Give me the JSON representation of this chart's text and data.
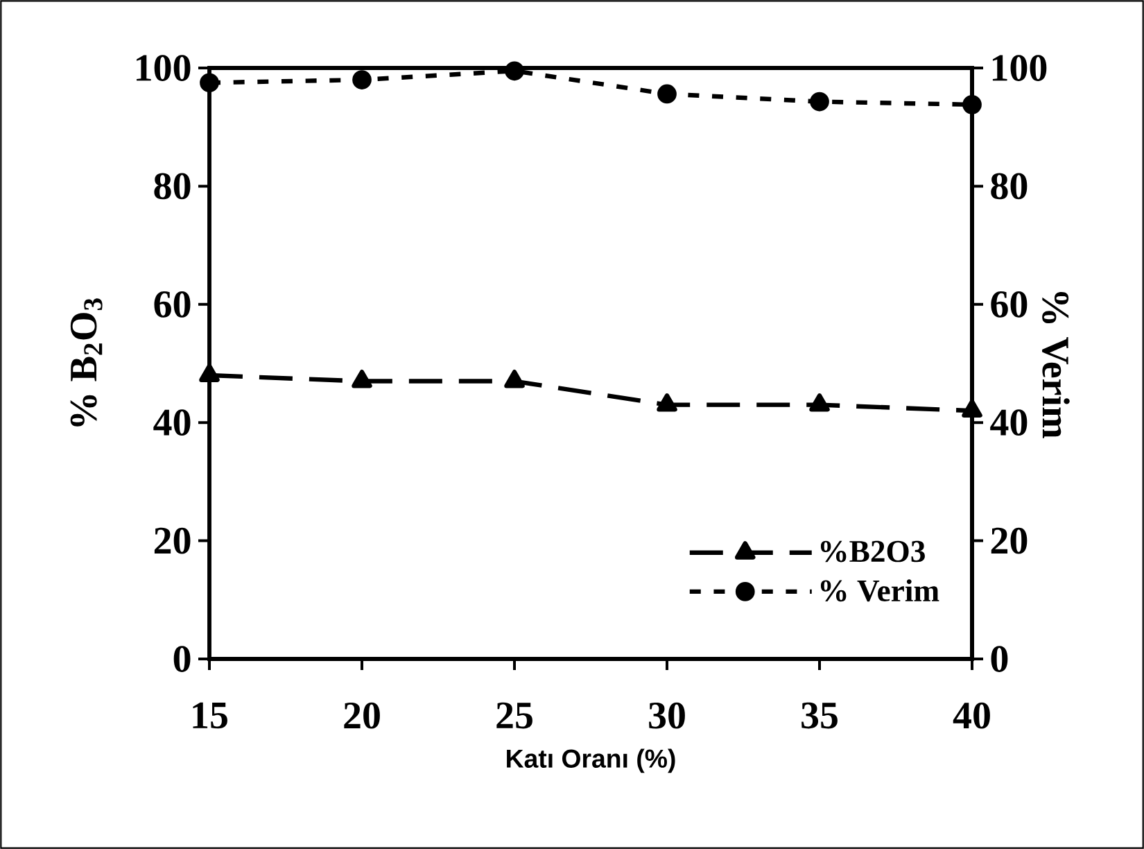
{
  "chart_data": {
    "type": "line",
    "xlabel": "Katı Oranı (%)",
    "ylabel": "% B$_{2}$O$_{3}$",
    "y2label": "% Verim",
    "x": [
      15,
      20,
      25,
      30,
      35,
      40
    ],
    "xlim": [
      15,
      40
    ],
    "xticks": [
      15,
      20,
      25,
      30,
      35,
      40
    ],
    "ylim": [
      0,
      100
    ],
    "yticks": [
      0,
      20,
      40,
      60,
      80,
      100
    ],
    "y2lim": [
      0,
      100
    ],
    "y2ticks": [
      0,
      20,
      40,
      60,
      80,
      100
    ],
    "series": [
      {
        "name": "%B2O3",
        "color": "#000000",
        "values": [
          48,
          47,
          47,
          43,
          43,
          42
        ],
        "marker": "triangle",
        "line_style": "dashed"
      },
      {
        "name": "% Verim",
        "color": "#000000",
        "values": [
          97.5,
          98,
          99.5,
          95.6,
          94.3,
          93.8
        ],
        "axis": "y2",
        "marker": "circle",
        "line_style": "dotted"
      }
    ],
    "legend": "bottom right"
  }
}
